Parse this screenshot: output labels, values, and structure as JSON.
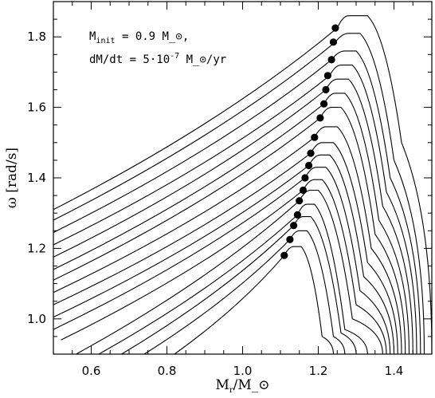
{
  "chart_data": {
    "type": "line",
    "xlabel": "M_r/M_⊙",
    "ylabel": "ω [rad/s]",
    "xlim": [
      0.5,
      1.5
    ],
    "ylim": [
      0.9,
      1.9
    ],
    "x_ticks": [
      0.6,
      0.8,
      1.0,
      1.2,
      1.4
    ],
    "x_tick_labels": [
      "0.6",
      "0.8",
      "1.0",
      "1.2",
      "1.4"
    ],
    "y_ticks": [
      1.0,
      1.2,
      1.4,
      1.6,
      1.8
    ],
    "y_tick_labels": [
      "1.0",
      "1.2",
      "1.4",
      "1.6",
      "1.8"
    ],
    "grid": false,
    "annotations": {
      "line1": "M_init = 0.9 M_⊙,",
      "line2": "dM/dt = 5·10^-7 M_⊙/yr"
    },
    "series": [
      {
        "x": [
          0.5,
          1.25,
          1.28,
          1.33,
          1.42,
          1.5
        ],
        "y": [
          1.31,
          1.825,
          1.86,
          1.86,
          1.5,
          0.9
        ]
      },
      {
        "x": [
          0.5,
          1.245,
          1.28,
          1.31,
          1.4,
          1.48
        ],
        "y": [
          1.28,
          1.785,
          1.81,
          1.81,
          1.45,
          0.9
        ]
      },
      {
        "x": [
          0.5,
          1.235,
          1.27,
          1.3,
          1.39,
          1.47
        ],
        "y": [
          1.245,
          1.735,
          1.76,
          1.76,
          1.4,
          0.9
        ]
      },
      {
        "x": [
          0.5,
          1.23,
          1.26,
          1.29,
          1.38,
          1.46
        ],
        "y": [
          1.21,
          1.69,
          1.72,
          1.72,
          1.36,
          0.9
        ]
      },
      {
        "x": [
          0.5,
          1.22,
          1.25,
          1.28,
          1.37,
          1.45
        ],
        "y": [
          1.175,
          1.65,
          1.68,
          1.68,
          1.32,
          0.9
        ]
      },
      {
        "x": [
          0.5,
          1.215,
          1.245,
          1.27,
          1.36,
          1.44
        ],
        "y": [
          1.14,
          1.61,
          1.64,
          1.64,
          1.28,
          0.9
        ]
      },
      {
        "x": [
          0.5,
          1.205,
          1.235,
          1.26,
          1.35,
          1.43
        ],
        "y": [
          1.11,
          1.57,
          1.6,
          1.6,
          1.24,
          0.9
        ]
      },
      {
        "x": [
          0.5,
          1.19,
          1.22,
          1.25,
          1.34,
          1.42
        ],
        "y": [
          1.075,
          1.515,
          1.545,
          1.545,
          1.2,
          0.9
        ]
      },
      {
        "x": [
          0.5,
          1.18,
          1.21,
          1.24,
          1.33,
          1.41
        ],
        "y": [
          1.04,
          1.47,
          1.5,
          1.5,
          1.16,
          0.9
        ]
      },
      {
        "x": [
          0.5,
          1.175,
          1.205,
          1.23,
          1.32,
          1.4
        ],
        "y": [
          1.005,
          1.435,
          1.465,
          1.465,
          1.12,
          0.9
        ]
      },
      {
        "x": [
          0.5,
          1.165,
          1.195,
          1.22,
          1.31,
          1.39
        ],
        "y": [
          0.97,
          1.4,
          1.43,
          1.43,
          1.08,
          0.9
        ]
      },
      {
        "x": [
          0.52,
          1.16,
          1.19,
          1.21,
          1.3,
          1.38
        ],
        "y": [
          0.94,
          1.365,
          1.395,
          1.395,
          1.04,
          0.9
        ]
      },
      {
        "x": [
          0.56,
          1.15,
          1.18,
          1.2,
          1.29,
          1.37
        ],
        "y": [
          0.9,
          1.335,
          1.365,
          1.365,
          1.0,
          0.9
        ]
      },
      {
        "x": [
          0.62,
          1.145,
          1.17,
          1.19,
          1.27,
          1.33
        ],
        "y": [
          0.9,
          1.295,
          1.325,
          1.325,
          0.97,
          0.9
        ]
      },
      {
        "x": [
          0.68,
          1.135,
          1.16,
          1.18,
          1.26,
          1.3
        ],
        "y": [
          0.9,
          1.265,
          1.29,
          1.29,
          0.96,
          0.9
        ]
      },
      {
        "x": [
          0.74,
          1.125,
          1.15,
          1.17,
          1.24,
          1.27
        ],
        "y": [
          0.9,
          1.225,
          1.25,
          1.25,
          0.95,
          0.9
        ]
      },
      {
        "x": [
          0.82,
          1.11,
          1.135,
          1.155,
          1.21,
          1.24
        ],
        "y": [
          0.9,
          1.18,
          1.205,
          1.205,
          0.95,
          0.9
        ]
      }
    ],
    "markers": {
      "x": [
        1.245,
        1.24,
        1.235,
        1.225,
        1.22,
        1.215,
        1.205,
        1.19,
        1.18,
        1.175,
        1.165,
        1.16,
        1.15,
        1.145,
        1.135,
        1.125,
        1.11
      ],
      "y": [
        1.825,
        1.785,
        1.735,
        1.69,
        1.65,
        1.61,
        1.57,
        1.515,
        1.47,
        1.435,
        1.4,
        1.365,
        1.335,
        1.295,
        1.265,
        1.225,
        1.18
      ]
    }
  }
}
